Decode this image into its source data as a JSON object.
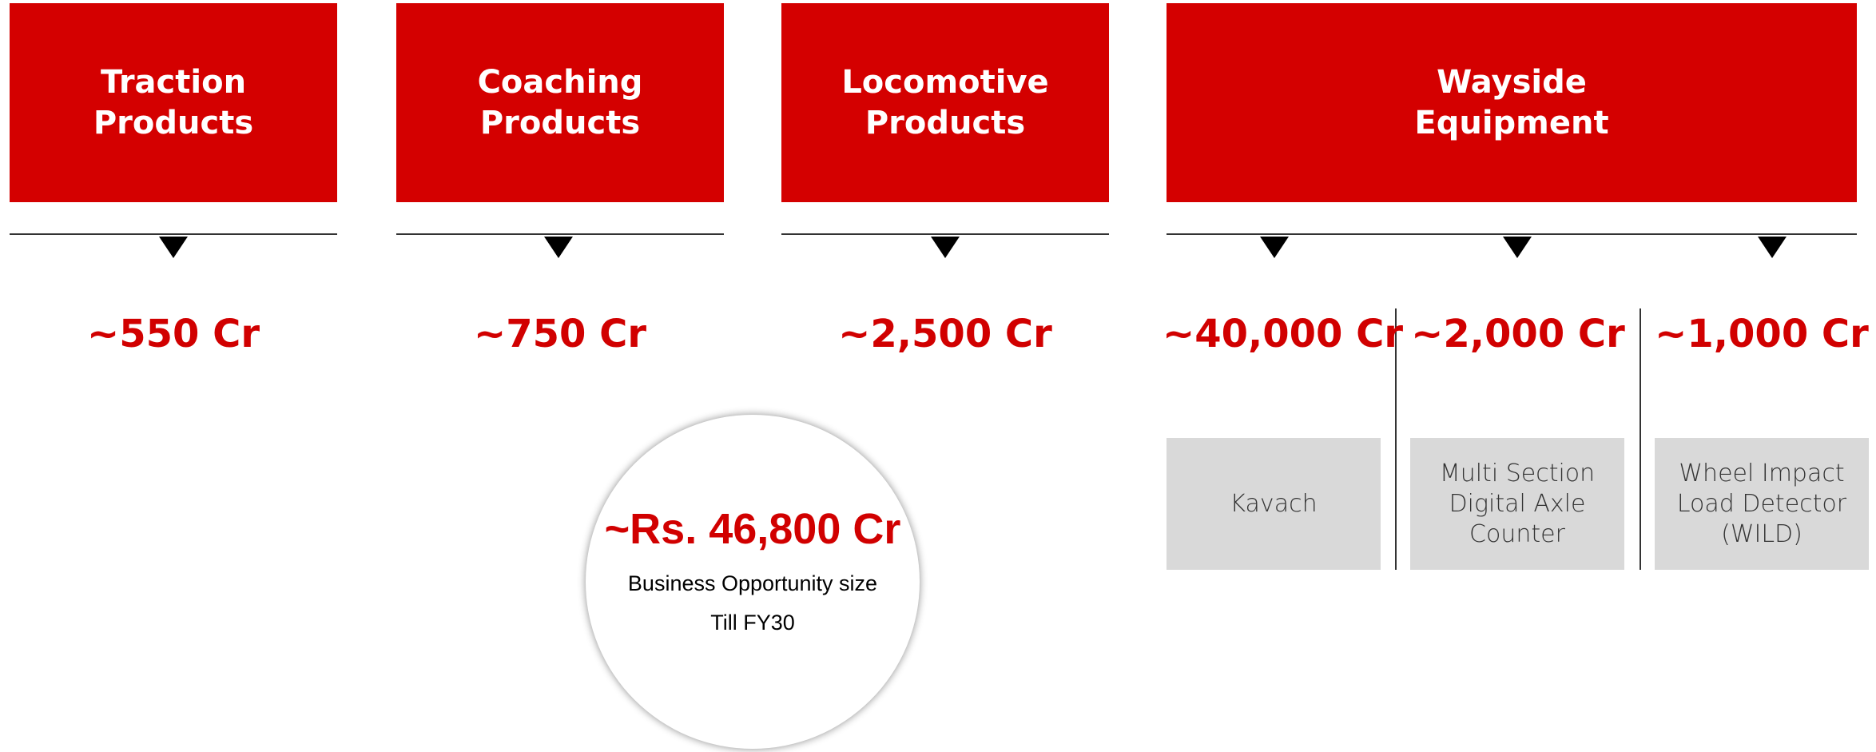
{
  "headers": [
    {
      "lines": [
        "Traction",
        "Products"
      ],
      "value": "~550 Cr"
    },
    {
      "lines": [
        "Coaching",
        "Products"
      ],
      "value": "~750 Cr"
    },
    {
      "lines": [
        "Locomotive",
        "Products"
      ],
      "value": "~2,500 Cr"
    },
    {
      "lines": [
        "Wayside",
        "Equipment"
      ]
    }
  ],
  "wayside_items": [
    {
      "value": "~40,000 Cr",
      "lines": [
        "Kavach"
      ]
    },
    {
      "value": "~2,000 Cr",
      "lines": [
        "Multi Section",
        "Digital Axle",
        "Counter"
      ]
    },
    {
      "value": "~1,000 Cr",
      "lines": [
        "Wheel Impact",
        "Load Detector",
        "(WILD)"
      ]
    }
  ],
  "total": {
    "value": "~Rs. 46,800 Cr",
    "lines": [
      "Business Opportunity size",
      "Till FY30"
    ]
  }
}
